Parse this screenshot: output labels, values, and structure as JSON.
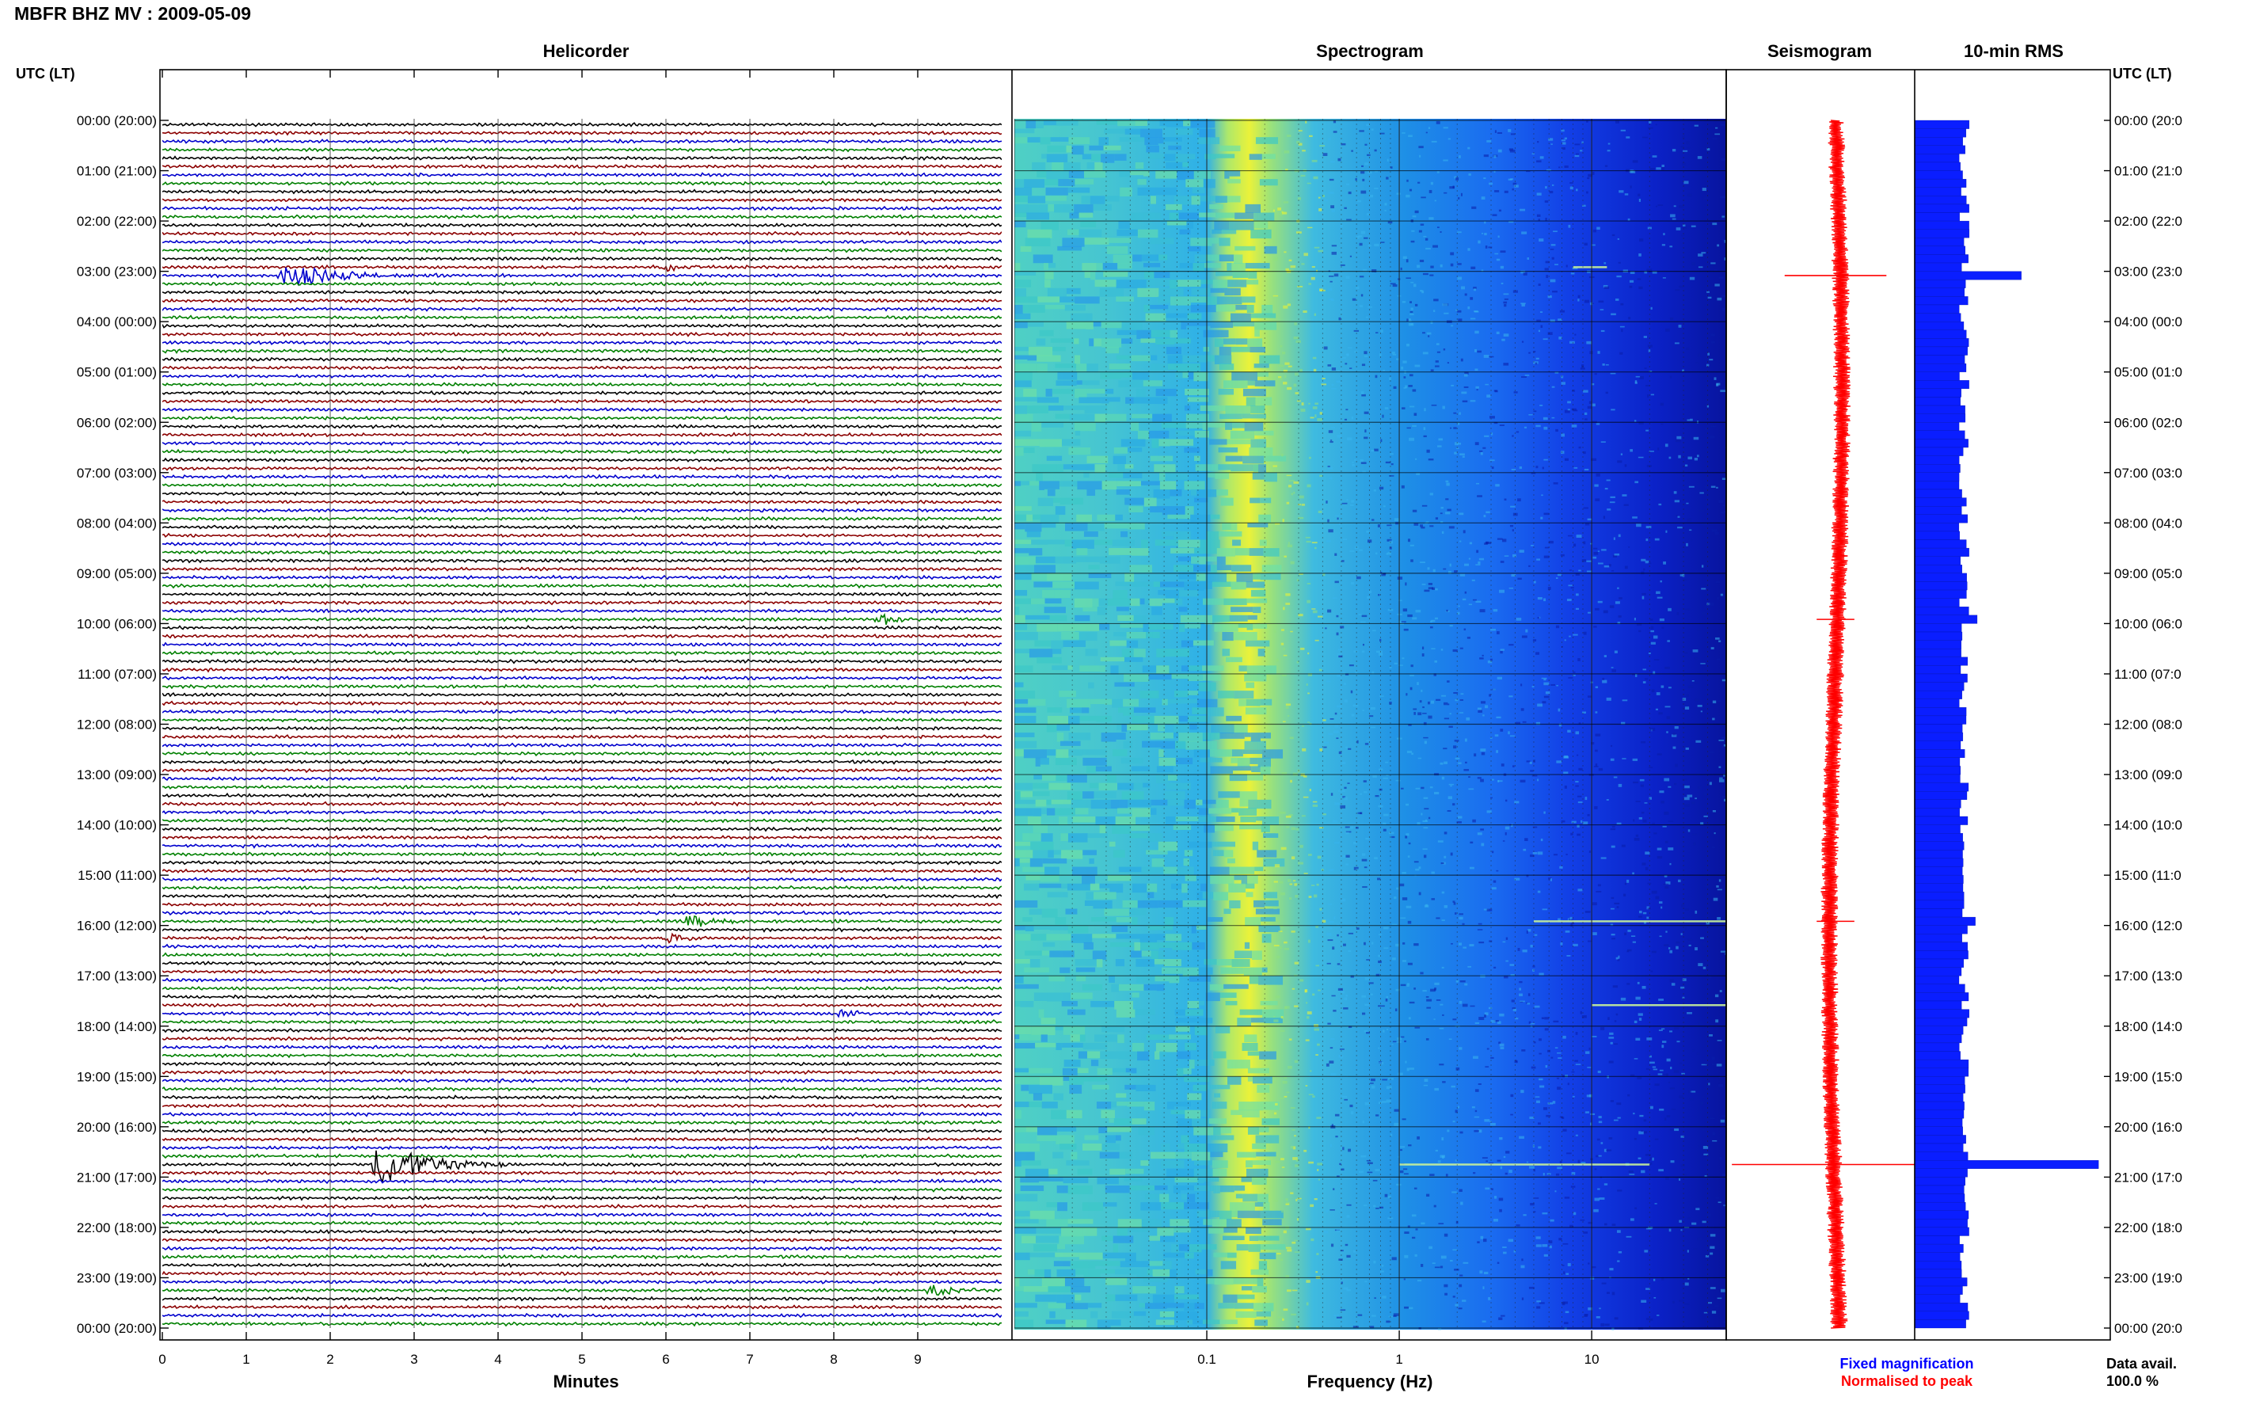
{
  "page": {
    "title": "MBFR BHZ MV : 2009-05-09"
  },
  "colors": {
    "trace_cycle": [
      "#000000",
      "#8b0000",
      "#0000cd",
      "#008000"
    ],
    "seismogram": "#ff0000",
    "rms_bar": "#0a1eff",
    "fixed_magnification": "#0000ff",
    "normalised_to_peak": "#ff0000"
  },
  "chart_data": [
    {
      "type": "line",
      "panel": "helicorder",
      "title": "Helicorder",
      "xlabel": "Minutes",
      "xlim": [
        0,
        10
      ],
      "x_ticks": [
        "0",
        "1",
        "2",
        "3",
        "4",
        "5",
        "6",
        "7",
        "8",
        "9"
      ],
      "rows_per_hour": 6,
      "hours": 24,
      "y_left_header": "UTC (LT)",
      "y_right_header": "UTC (LT)",
      "y_tick_labels": [
        "00:00 (20:00)",
        "01:00 (21:00)",
        "02:00 (22:00)",
        "03:00 (23:00)",
        "04:00 (00:00)",
        "05:00 (01:00)",
        "06:00 (02:00)",
        "07:00 (03:00)",
        "08:00 (04:00)",
        "09:00 (05:00)",
        "10:00 (06:00)",
        "11:00 (07:00)",
        "12:00 (08:00)",
        "13:00 (09:00)",
        "14:00 (10:00)",
        "15:00 (11:00)",
        "16:00 (12:00)",
        "17:00 (13:00)",
        "18:00 (14:00)",
        "19:00 (15:00)",
        "20:00 (16:00)",
        "21:00 (17:00)",
        "22:00 (18:00)",
        "23:00 (19:00)",
        "00:00 (20:00)"
      ],
      "y_right_tick_labels": [
        "00:00 (20:0",
        "01:00 (21:0",
        "02:00 (22:0",
        "03:00 (23:0",
        "04:00 (00:0",
        "05:00 (01:0",
        "06:00 (02:0",
        "07:00 (03:0",
        "08:00 (04:0",
        "09:00 (05:0",
        "10:00 (06:0",
        "11:00 (07:0",
        "12:00 (08:0",
        "13:00 (09:0",
        "14:00 (10:0",
        "15:00 (11:0",
        "16:00 (12:0",
        "17:00 (13:0",
        "18:00 (14:0",
        "19:00 (15:0",
        "20:00 (16:0",
        "21:00 (17:0",
        "22:00 (18:0",
        "23:00 (19:0",
        "00:00 (20:0"
      ],
      "events": [
        {
          "row": 18,
          "minute": 1.5,
          "amplitude": 3.5,
          "duration_min": 1.8
        },
        {
          "row": 124,
          "minute": 2.6,
          "amplitude": 7.0,
          "duration_min": 1.6
        },
        {
          "row": 95,
          "minute": 6.3,
          "amplitude": 2.2,
          "duration_min": 0.8
        },
        {
          "row": 97,
          "minute": 6.0,
          "amplitude": 1.8,
          "duration_min": 0.8
        },
        {
          "row": 59,
          "minute": 8.6,
          "amplitude": 1.8,
          "duration_min": 0.6
        },
        {
          "row": 139,
          "minute": 9.2,
          "amplitude": 1.8,
          "duration_min": 0.8
        },
        {
          "row": 145,
          "minute": 6.0,
          "amplitude": 1.6,
          "duration_min": 0.6
        },
        {
          "row": 106,
          "minute": 8.1,
          "amplitude": 1.4,
          "duration_min": 0.5
        },
        {
          "row": 17,
          "minute": 6.0,
          "amplitude": 1.2,
          "duration_min": 0.8
        }
      ]
    },
    {
      "type": "heatmap",
      "panel": "spectrogram",
      "title": "Spectrogram",
      "xlabel": "Frequency (Hz)",
      "x_scale": "log",
      "xlim": [
        0.01,
        50
      ],
      "x_ticks": [
        "0.1",
        "1",
        "10"
      ],
      "colormap": "jet",
      "peak_band_hz": [
        0.2,
        0.3
      ],
      "spikes": [
        {
          "row": 17,
          "f_start": 8,
          "f_end": 12
        },
        {
          "row": 124,
          "f_start": 1,
          "f_end": 20
        },
        {
          "row": 95,
          "f_start": 5,
          "f_end": 50
        },
        {
          "row": 105,
          "f_start": 10,
          "f_end": 50
        }
      ]
    },
    {
      "type": "line",
      "panel": "seismogram",
      "title": "Seismogram",
      "legend": [
        "Fixed magnification",
        "Normalised to peak"
      ],
      "spikes": [
        {
          "row": 18,
          "half_width": 0.27
        },
        {
          "row": 124,
          "half_width": 0.55
        },
        {
          "row": 59,
          "half_width": 0.1
        },
        {
          "row": 95,
          "half_width": 0.1
        }
      ]
    },
    {
      "type": "bar",
      "panel": "rms",
      "title": "10-min RMS",
      "orientation": "horizontal",
      "bins": 144,
      "base_level": 0.28,
      "peaks": [
        {
          "row": 18,
          "value": 0.58
        },
        {
          "row": 124,
          "value": 1.0
        },
        {
          "row": 59,
          "value": 0.34
        },
        {
          "row": 95,
          "value": 0.33
        }
      ],
      "availability_label": "Data avail.",
      "availability": "100.0 %"
    }
  ]
}
